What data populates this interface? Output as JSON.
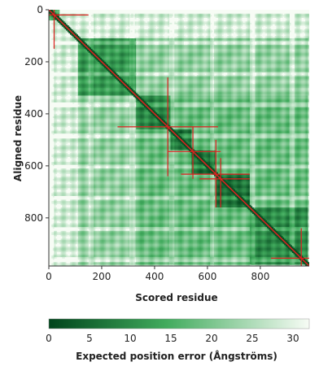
{
  "chart_data": {
    "type": "heatmap",
    "xlabel": "Scored residue",
    "ylabel": "Aligned residue",
    "xlim": [
      0,
      985
    ],
    "ylim": [
      0,
      985
    ],
    "x_ticks": [
      0,
      200,
      400,
      600,
      800
    ],
    "y_ticks": [
      0,
      200,
      400,
      600,
      800
    ],
    "colorbar": {
      "label": "Expected position error (Ångströms)",
      "ticks": [
        0,
        5,
        10,
        15,
        20,
        25,
        30
      ],
      "range": [
        0,
        32
      ],
      "low_color": "#00441b",
      "mid_color": "#41ab5d",
      "high_color": "#f7fcf5"
    },
    "domain_blocks": [
      {
        "start": 0,
        "end": 40,
        "mean_error": 8
      },
      {
        "start": 110,
        "end": 330,
        "mean_error": 12
      },
      {
        "start": 330,
        "end": 460,
        "mean_error": 9
      },
      {
        "start": 460,
        "end": 540,
        "mean_error": 7
      },
      {
        "start": 540,
        "end": 630,
        "mean_error": 6
      },
      {
        "start": 630,
        "end": 760,
        "mean_error": 6
      },
      {
        "start": 760,
        "end": 980,
        "mean_error": 10
      }
    ],
    "diagonal_color": "#e02020",
    "highlight_color": "#e02020",
    "highlight_markers": [
      {
        "residue": 20,
        "range": [
          0,
          150
        ]
      },
      {
        "residue": 450,
        "range": [
          260,
          640
        ]
      },
      {
        "residue": 545,
        "range": [
          450,
          650
        ]
      },
      {
        "residue": 632,
        "range": [
          500,
          760
        ]
      },
      {
        "residue": 650,
        "range": [
          570,
          760
        ]
      },
      {
        "residue": 955,
        "range": [
          840,
          985
        ]
      }
    ],
    "grid": false
  }
}
